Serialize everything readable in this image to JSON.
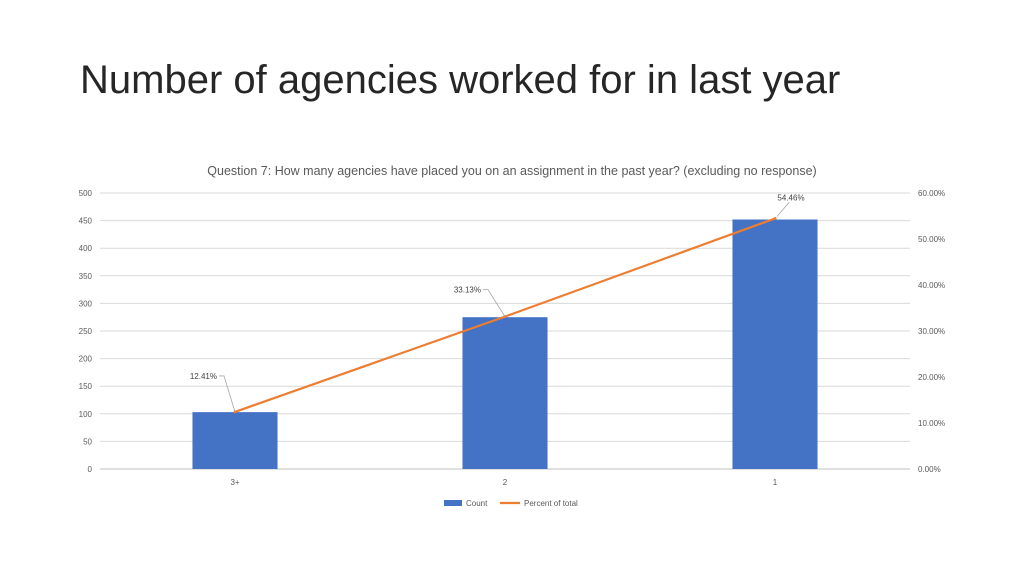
{
  "slide": {
    "title": "Number of agencies worked for in last year"
  },
  "chart_data": {
    "type": "bar",
    "title": "Question 7: How many agencies have placed you on an assignment in the past year? (excluding no response)",
    "categories": [
      "3+",
      "2",
      "1"
    ],
    "series": [
      {
        "name": "Count",
        "type": "bar",
        "axis": "left",
        "color": "#4472C4",
        "values": [
          103,
          275,
          452
        ]
      },
      {
        "name": "Percent of total",
        "type": "line",
        "axis": "right",
        "color": "#ED7D31",
        "values": [
          12.41,
          33.13,
          54.46
        ]
      }
    ],
    "data_labels": [
      "12.41%",
      "33.13%",
      "54.46%"
    ],
    "y_left": {
      "min": 0,
      "max": 500,
      "step": 50,
      "ticks": [
        "0",
        "50",
        "100",
        "150",
        "200",
        "250",
        "300",
        "350",
        "400",
        "450",
        "500"
      ]
    },
    "y_right": {
      "min": 0,
      "max": 60,
      "step": 10,
      "ticks": [
        "0.00%",
        "10.00%",
        "20.00%",
        "30.00%",
        "40.00%",
        "50.00%",
        "60.00%"
      ]
    },
    "grid": true,
    "legend": {
      "position": "bottom",
      "entries": [
        "Count",
        "Percent of total"
      ]
    },
    "xlabel": "",
    "ylabel": ""
  }
}
